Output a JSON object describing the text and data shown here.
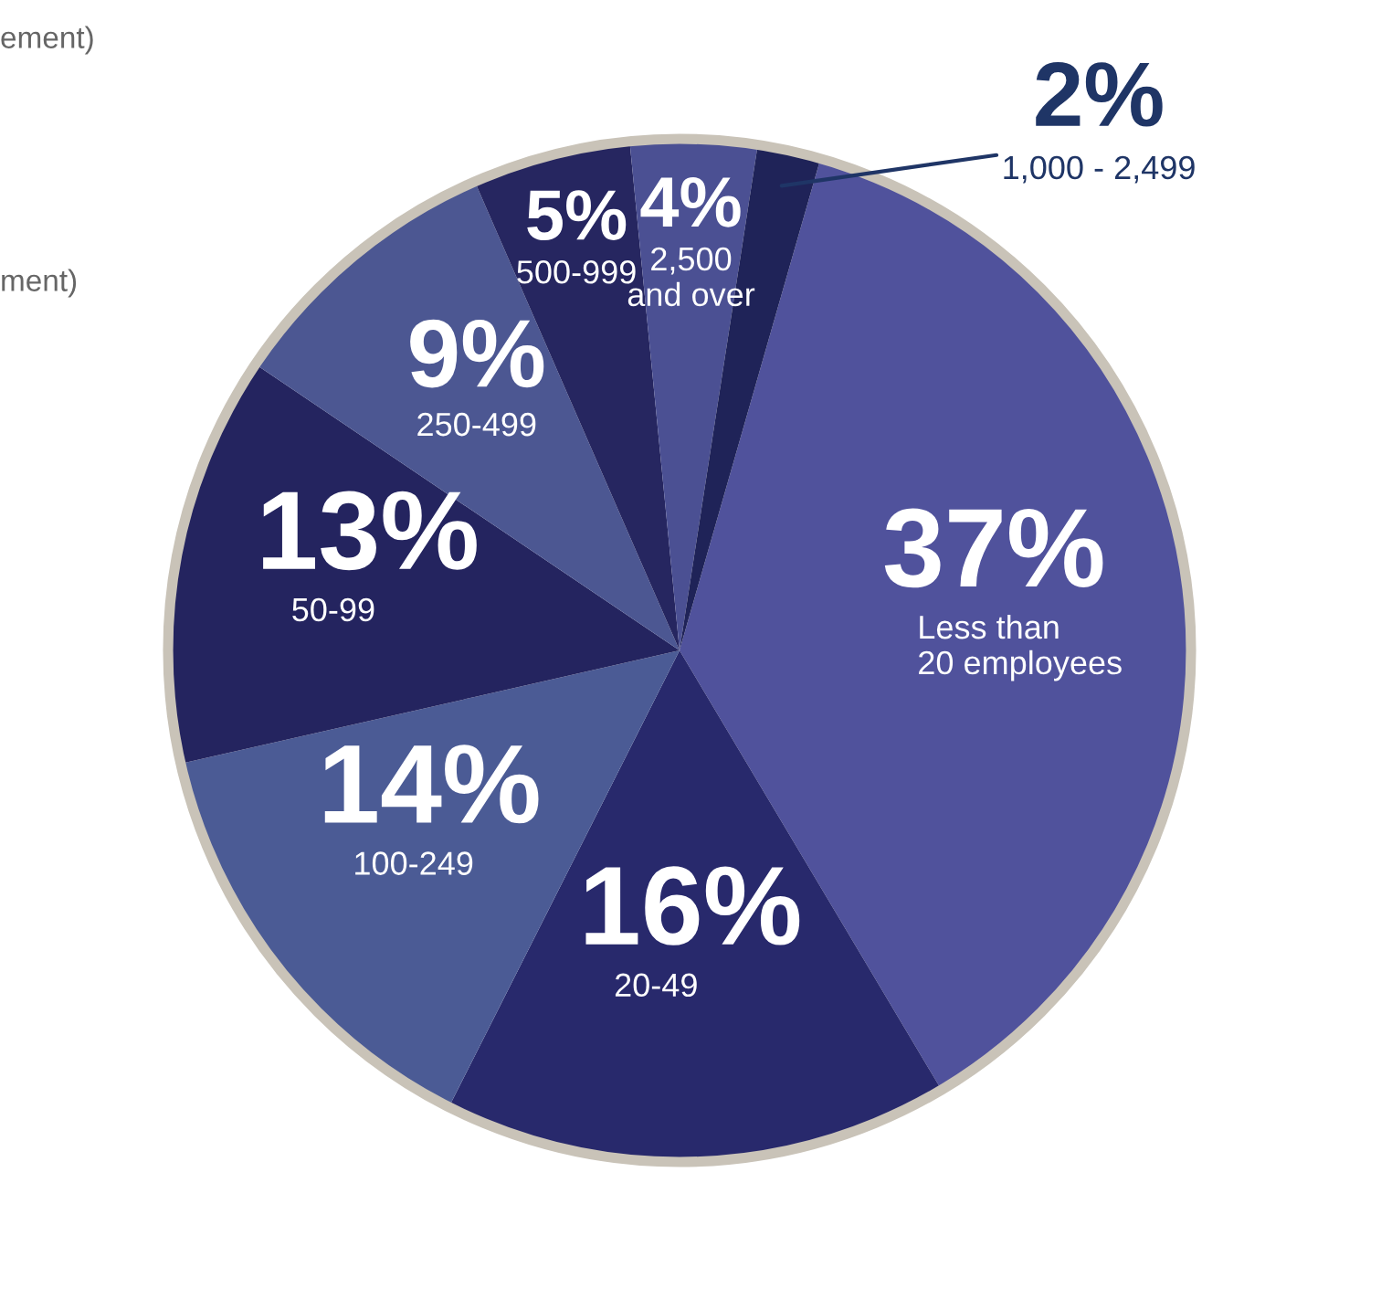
{
  "chart_data": {
    "type": "pie",
    "categories": [
      "Less than\n20 employees",
      "20-49",
      "100-249",
      "50-99",
      "250-499",
      "500-999",
      "2,500\nand over",
      "1,000 - 2,499"
    ],
    "values": [
      37,
      16,
      14,
      13,
      9,
      5,
      4,
      2
    ],
    "value_labels": [
      "37%",
      "16%",
      "14%",
      "13%",
      "9%",
      "5%",
      "4%",
      "2%"
    ],
    "colors": [
      "#50529c",
      "#28296c",
      "#4b5b95",
      "#24245f",
      "#4c5792",
      "#262660",
      "#4b5093",
      "#1f2358"
    ],
    "annotations": [
      "ement)",
      "ment)"
    ],
    "legend": false
  }
}
